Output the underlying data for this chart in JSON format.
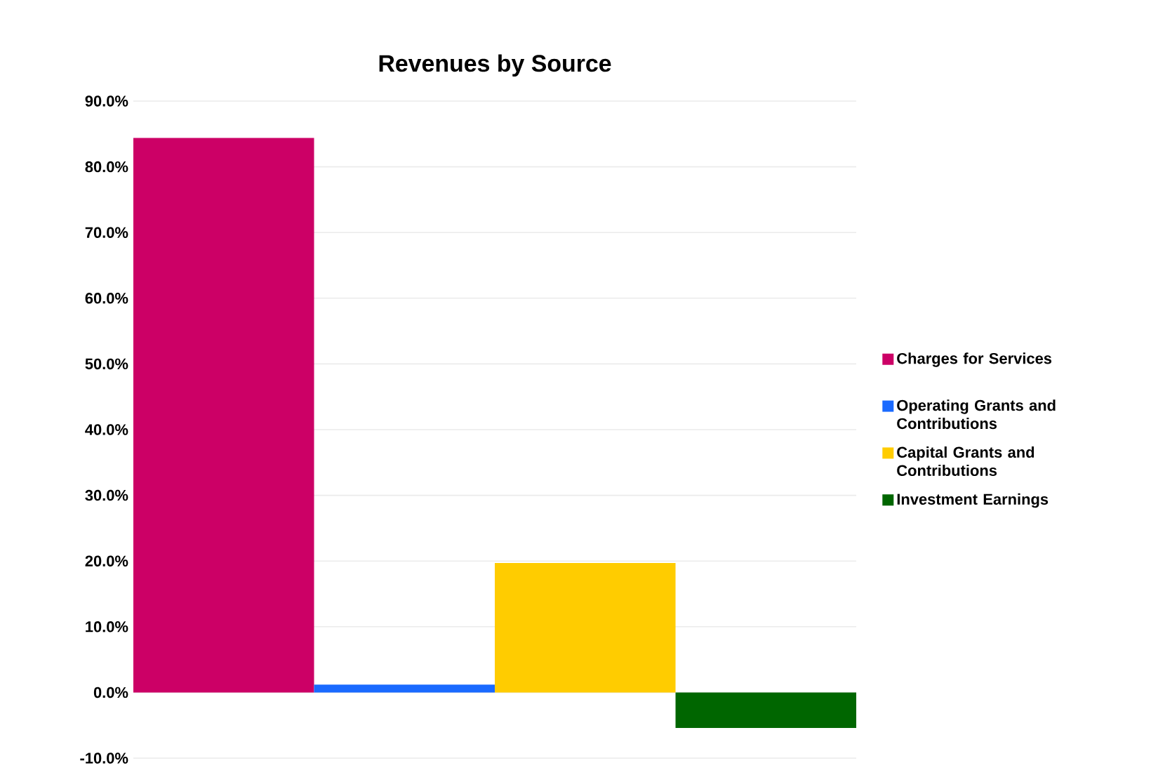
{
  "chart_data": {
    "type": "bar",
    "title": "Revenues by Source",
    "categories": [
      null
    ],
    "series": [
      {
        "name": "Charges for Services",
        "color": "#cc0066",
        "values": [
          84.4
        ]
      },
      {
        "name": "Operating Grants and Contributions",
        "color": "#1a6aff",
        "values": [
          1.2
        ]
      },
      {
        "name": "Capital Grants and Contributions",
        "color": "#ffcc00",
        "values": [
          19.7
        ]
      },
      {
        "name": "Investment Earnings",
        "color": "#006600",
        "values": [
          -5.4
        ]
      }
    ],
    "ylim": [
      -10,
      90
    ],
    "yticks": [
      {
        "value": -10,
        "label": "-10.0%"
      },
      {
        "value": 0,
        "label": "0.0%"
      },
      {
        "value": 10,
        "label": "10.0%"
      },
      {
        "value": 20,
        "label": "20.0%"
      },
      {
        "value": 30,
        "label": "30.0%"
      },
      {
        "value": 40,
        "label": "40.0%"
      },
      {
        "value": 50,
        "label": "50.0%"
      },
      {
        "value": 60,
        "label": "60.0%"
      },
      {
        "value": 70,
        "label": "70.0%"
      },
      {
        "value": 80,
        "label": "80.0%"
      },
      {
        "value": 90,
        "label": "90.0%"
      }
    ],
    "grid": "y",
    "legend": "right"
  }
}
